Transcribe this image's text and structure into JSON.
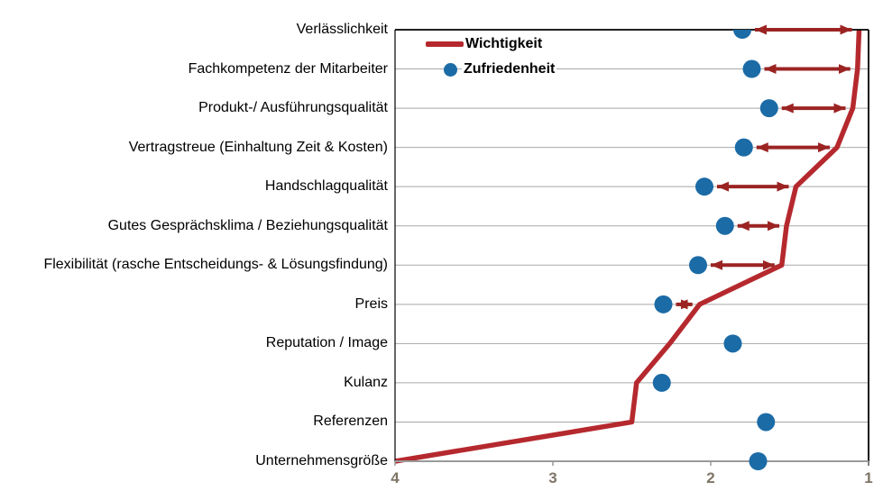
{
  "chart_data": {
    "type": "line",
    "title": "",
    "orientation": "horizontal-category",
    "x_axis": {
      "min": 1,
      "max": 4,
      "reversed": true,
      "ticks": [
        4,
        3,
        2,
        1
      ],
      "grid": "horizontal-only"
    },
    "categories": [
      "Verlässlichkeit",
      "Fachkompetenz der Mitarbeiter",
      "Produkt-/ Ausführungsqualität",
      "Vertragstreue (Einhaltung Zeit & Kosten)",
      "Handschlagqualität",
      "Gutes Gesprächsklima / Beziehungsqualität",
      "Flexibilität (rasche Entscheidungs- & Lösungsfindung)",
      "Preis",
      "Reputation / Image",
      "Kulanz",
      "Referenzen",
      "Unternehmensgröße"
    ],
    "series": [
      {
        "name": "Wichtigkeit",
        "style": "line",
        "color": "#b5292e",
        "values": [
          1.06,
          1.07,
          1.1,
          1.2,
          1.46,
          1.52,
          1.55,
          2.07,
          2.26,
          2.47,
          2.5,
          4.0
        ]
      },
      {
        "name": "Zufriedenheit",
        "style": "dot",
        "color": "#1b6ba6",
        "values": [
          1.8,
          1.74,
          1.63,
          1.79,
          2.04,
          1.91,
          2.08,
          2.3,
          1.86,
          2.31,
          1.65,
          1.7
        ]
      }
    ],
    "gap_arrows": [
      true,
      true,
      true,
      true,
      true,
      true,
      true,
      true,
      false,
      false,
      false,
      false
    ],
    "legend_position": "top-left-inside"
  },
  "colors": {
    "line_red": "#b5292e",
    "arrow_red": "#9b2423",
    "dot_blue": "#1b6ba6",
    "gridline": "#a8a8a8",
    "border_black": "#000000",
    "axis_gray": "#9a9a9a",
    "tick_label": "#7f7567"
  }
}
